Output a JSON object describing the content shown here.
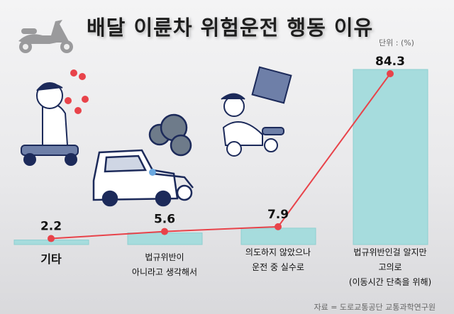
{
  "title": "배달 이륜차 위험운전 행동 이유",
  "unit": "단위 : (%)",
  "source": "자료 = 도로교통공단 교통과학연구원",
  "colors": {
    "bar": "#a6dcdd",
    "bar_border": "#8fcfd1",
    "line": "#e8434a",
    "dot": "#e8434a"
  },
  "chart_data": {
    "type": "bar",
    "overlay": "line",
    "categories": [
      "기타",
      "법규위반이 아니라고 생각해서",
      "의도하지 않았으나 운전 중 실수로",
      "법규위반인걸 알지만 고의로 (이동시간 단축을 위해)"
    ],
    "category_lines": [
      [
        "기타"
      ],
      [
        "법규위반이",
        "아니라고 생각해서"
      ],
      [
        "의도하지 않았으나",
        "운전 중 실수로"
      ],
      [
        "법규위반인걸 알지만",
        "고의로",
        "(이동시간 단축을 위해)"
      ]
    ],
    "values": [
      2.2,
      5.6,
      7.9,
      84.3
    ],
    "value_labels": [
      "2.2",
      "5.6",
      "7.9",
      "84.3"
    ],
    "ylabel": "단위 : (%)",
    "ylim": [
      0,
      100
    ],
    "grid": false
  }
}
